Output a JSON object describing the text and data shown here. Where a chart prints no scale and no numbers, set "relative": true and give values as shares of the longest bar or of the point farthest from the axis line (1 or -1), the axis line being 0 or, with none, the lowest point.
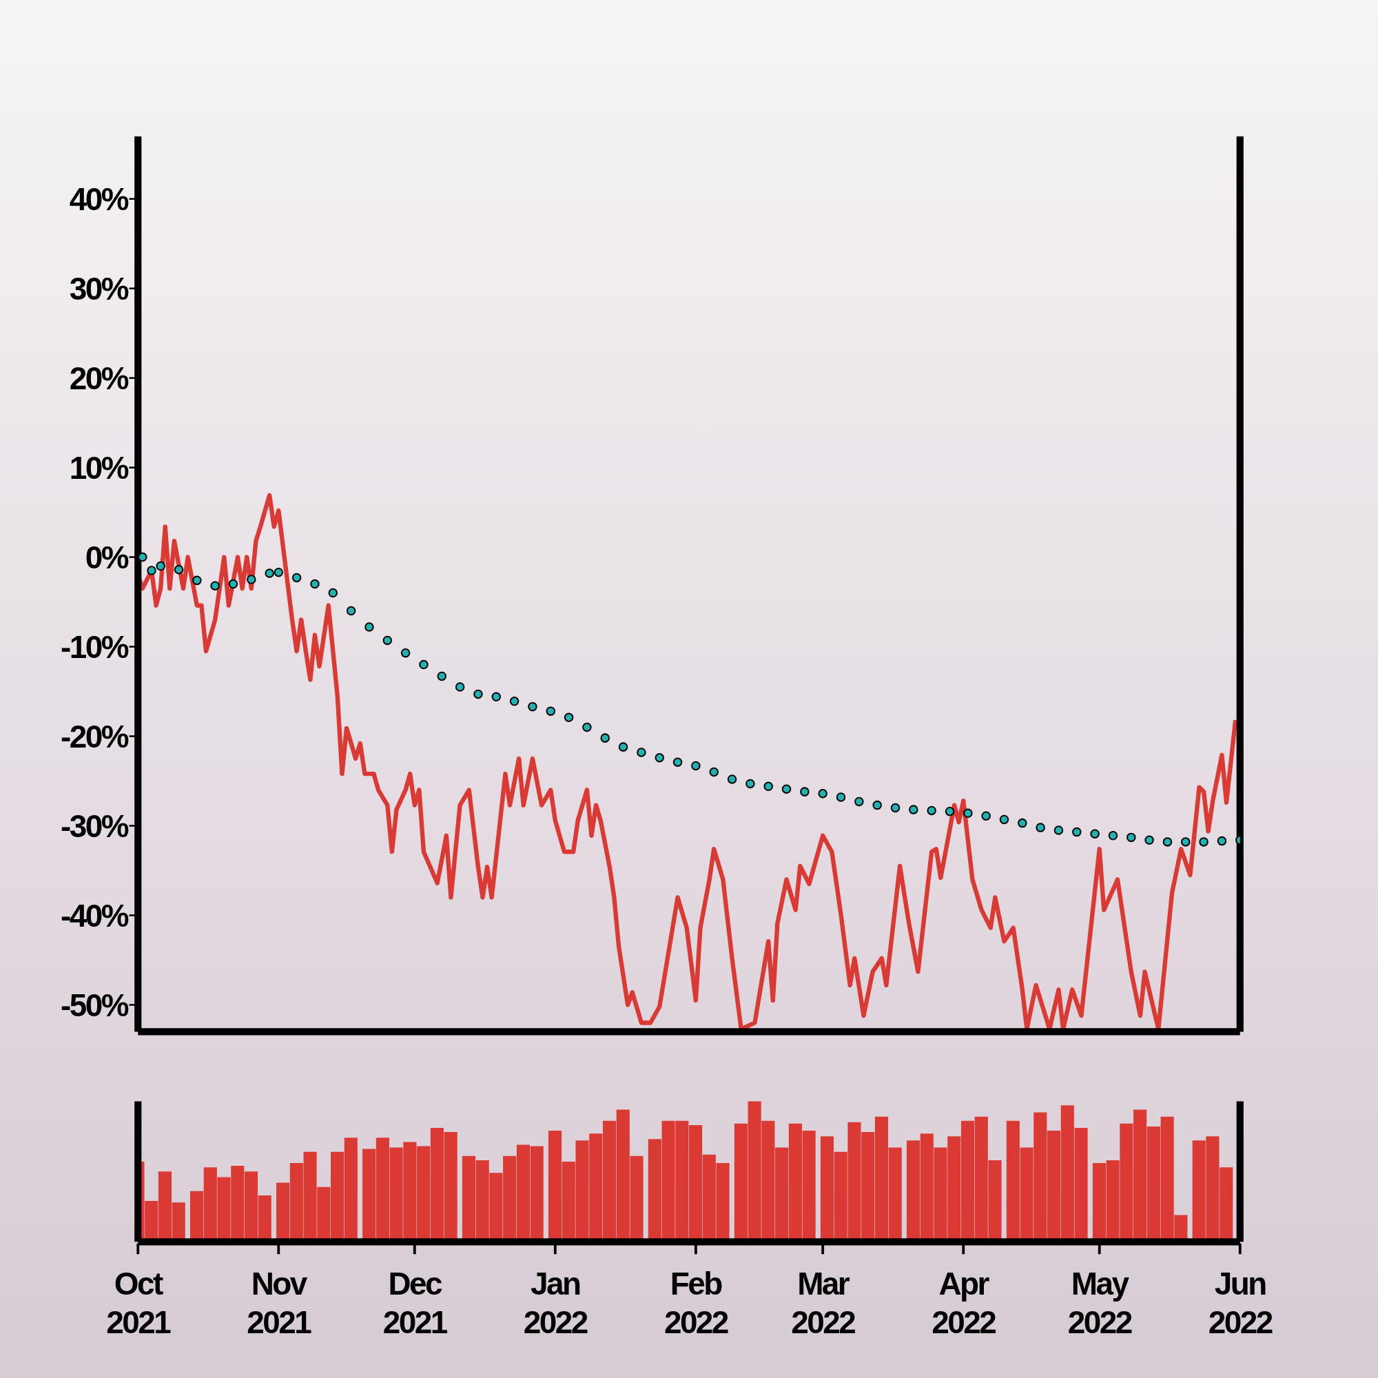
{
  "chart_data": [
    {
      "type": "line",
      "xlim": [
        "2021-10-01",
        "2022-06-01"
      ],
      "ylim": [
        -53,
        47
      ],
      "yticks": [
        {
          "value": -50,
          "label": "-50%"
        },
        {
          "value": -40,
          "label": "-40%"
        },
        {
          "value": -30,
          "label": "-30%"
        },
        {
          "value": -20,
          "label": "-20%"
        },
        {
          "value": -10,
          "label": "-10%"
        },
        {
          "value": 0,
          "label": "0%"
        },
        {
          "value": 10,
          "label": "10%"
        },
        {
          "value": 20,
          "label": "20%"
        },
        {
          "value": 30,
          "label": "30%"
        },
        {
          "value": 40,
          "label": "40%"
        }
      ],
      "tick_labels": "y",
      "series": [
        {
          "color": "#db3a34",
          "line_style": "solid",
          "x": [
            "2021-10-01",
            "2021-10-02",
            "2021-10-04",
            "2021-10-05",
            "2021-10-06",
            "2021-10-07",
            "2021-10-08",
            "2021-10-09",
            "2021-10-11",
            "2021-10-12",
            "2021-10-14",
            "2021-10-15",
            "2021-10-16",
            "2021-10-18",
            "2021-10-20",
            "2021-10-21",
            "2021-10-23",
            "2021-10-24",
            "2021-10-25",
            "2021-10-26",
            "2021-10-27",
            "2021-10-28",
            "2021-10-30",
            "2021-10-31",
            "2021-11-01",
            "2021-11-04",
            "2021-11-05",
            "2021-11-06",
            "2021-11-07",
            "2021-11-08",
            "2021-11-09",
            "2021-11-10",
            "2021-11-12",
            "2021-11-14",
            "2021-11-15",
            "2021-11-16",
            "2021-11-18",
            "2021-11-19",
            "2021-11-20",
            "2021-11-22",
            "2021-11-23",
            "2021-11-25",
            "2021-11-26",
            "2021-11-27",
            "2021-11-29",
            "2021-11-30",
            "2021-12-01",
            "2021-12-02",
            "2021-12-03",
            "2021-12-06",
            "2021-12-08",
            "2021-12-09",
            "2021-12-11",
            "2021-12-13",
            "2021-12-15",
            "2021-12-16",
            "2021-12-17",
            "2021-12-18",
            "2021-12-21",
            "2021-12-22",
            "2021-12-24",
            "2021-12-25",
            "2021-12-27",
            "2021-12-29",
            "2021-12-31",
            "2022-01-01",
            "2022-01-03",
            "2022-01-05",
            "2022-01-06",
            "2022-01-08",
            "2022-01-09",
            "2022-01-10",
            "2022-01-11",
            "2022-01-13",
            "2022-01-14",
            "2022-01-15",
            "2022-01-17",
            "2022-01-18",
            "2022-01-20",
            "2022-01-22",
            "2022-01-24",
            "2022-01-28",
            "2022-01-30",
            "2022-02-01",
            "2022-02-02",
            "2022-02-04",
            "2022-02-05",
            "2022-02-07",
            "2022-02-09",
            "2022-02-11",
            "2022-02-14",
            "2022-02-17",
            "2022-02-18",
            "2022-02-19",
            "2022-02-21",
            "2022-02-23",
            "2022-02-24",
            "2022-02-26",
            "2022-03-01",
            "2022-03-03",
            "2022-03-05",
            "2022-03-07",
            "2022-03-08",
            "2022-03-10",
            "2022-03-12",
            "2022-03-14",
            "2022-03-15",
            "2022-03-18",
            "2022-03-20",
            "2022-03-22",
            "2022-03-25",
            "2022-03-26",
            "2022-03-27",
            "2022-03-30",
            "2022-03-31",
            "2022-04-01",
            "2022-04-03",
            "2022-04-05",
            "2022-04-07",
            "2022-04-08",
            "2022-04-10",
            "2022-04-12",
            "2022-04-14",
            "2022-04-15",
            "2022-04-17",
            "2022-04-20",
            "2022-04-22",
            "2022-04-23",
            "2022-04-25",
            "2022-04-27",
            "2022-05-01",
            "2022-05-02",
            "2022-05-05",
            "2022-05-08",
            "2022-05-10",
            "2022-05-11",
            "2022-05-14",
            "2022-05-17",
            "2022-05-19",
            "2022-05-21",
            "2022-05-23",
            "2022-05-24",
            "2022-05-25",
            "2022-05-26",
            "2022-05-28",
            "2022-05-29",
            "2022-05-31"
          ],
          "values": [
            -2,
            -3.5,
            -1.5,
            -5.4,
            -3.5,
            3.4,
            -3.5,
            1.8,
            -3.5,
            0,
            -5.4,
            -5.4,
            -10.5,
            -7,
            0,
            -5.4,
            0,
            -3.5,
            0,
            -3.5,
            1.8,
            3.4,
            6.9,
            3.4,
            5.2,
            -7,
            -10.5,
            -7,
            -10.5,
            -13.7,
            -8.7,
            -12.2,
            -5.4,
            -15.6,
            -24.2,
            -19.1,
            -22.5,
            -20.8,
            -24.2,
            -24.2,
            -26,
            -27.7,
            -32.9,
            -28.2,
            -26,
            -24.2,
            -27.7,
            -26,
            -32.9,
            -36.4,
            -31.1,
            -38,
            -27.7,
            -26,
            -34.6,
            -38,
            -34.6,
            -38,
            -24.2,
            -27.7,
            -22.5,
            -27.7,
            -22.5,
            -27.7,
            -26,
            -29.4,
            -32.9,
            -32.9,
            -29.4,
            -26,
            -31.1,
            -27.7,
            -29.4,
            -34.6,
            -38,
            -43.4,
            -50,
            -48.6,
            -52,
            -52,
            -50.2,
            -38,
            -41.4,
            -49.5,
            -41.4,
            -36,
            -32.6,
            -36,
            -44.8,
            -52.7,
            -52,
            -42.9,
            -49.5,
            -40.9,
            -36,
            -39.4,
            -34.5,
            -36.5,
            -31.1,
            -32.9,
            -39.9,
            -47.8,
            -44.8,
            -51.2,
            -46.3,
            -44.8,
            -47.8,
            -34.5,
            -40.9,
            -46.3,
            -32.9,
            -32.6,
            -35.8,
            -27.7,
            -29.6,
            -27.2,
            -36,
            -39.4,
            -41.4,
            -38,
            -42.9,
            -41.4,
            -48.3,
            -52.7,
            -47.8,
            -52.7,
            -48.3,
            -52.7,
            -48.3,
            -51.2,
            -32.6,
            -39.4,
            -36,
            -46.3,
            -51.2,
            -46.3,
            -52.7,
            -37.5,
            -32.6,
            -35.5,
            -25.7,
            -26.2,
            -30.6,
            -27.2,
            -22.1,
            -27.4,
            -18.2
          ]
        },
        {
          "type": "scatter",
          "color": "#1fb3b3",
          "marker": "circle",
          "x": [
            "2021-10-02",
            "2021-10-04",
            "2021-10-06",
            "2021-10-10",
            "2021-10-14",
            "2021-10-18",
            "2021-10-22",
            "2021-10-26",
            "2021-10-30",
            "2021-11-01",
            "2021-11-05",
            "2021-11-09",
            "2021-11-13",
            "2021-11-17",
            "2021-11-21",
            "2021-11-25",
            "2021-11-29",
            "2021-12-03",
            "2021-12-07",
            "2021-12-11",
            "2021-12-15",
            "2021-12-19",
            "2021-12-23",
            "2021-12-27",
            "2021-12-31",
            "2022-01-04",
            "2022-01-08",
            "2022-01-12",
            "2022-01-16",
            "2022-01-20",
            "2022-01-24",
            "2022-01-28",
            "2022-02-01",
            "2022-02-05",
            "2022-02-09",
            "2022-02-13",
            "2022-02-17",
            "2022-02-21",
            "2022-02-25",
            "2022-03-01",
            "2022-03-05",
            "2022-03-09",
            "2022-03-13",
            "2022-03-17",
            "2022-03-21",
            "2022-03-25",
            "2022-03-29",
            "2022-04-02",
            "2022-04-06",
            "2022-04-10",
            "2022-04-14",
            "2022-04-18",
            "2022-04-22",
            "2022-04-26",
            "2022-04-30",
            "2022-05-04",
            "2022-05-08",
            "2022-05-12",
            "2022-05-16",
            "2022-05-20",
            "2022-05-24",
            "2022-05-28",
            "2022-06-01"
          ],
          "values": [
            0,
            -1.5,
            -1,
            -1.4,
            -2.6,
            -3.2,
            -3,
            -2.5,
            -1.8,
            -1.7,
            -2.3,
            -3,
            -4,
            -6,
            -7.8,
            -9.3,
            -10.7,
            -12,
            -13.3,
            -14.5,
            -15.3,
            -15.6,
            -16.1,
            -16.7,
            -17.2,
            -17.9,
            -19,
            -20.2,
            -21.2,
            -21.8,
            -22.4,
            -22.9,
            -23.3,
            -24,
            -24.8,
            -25.3,
            -25.6,
            -25.9,
            -26.2,
            -26.4,
            -26.8,
            -27.3,
            -27.7,
            -28,
            -28.2,
            -28.3,
            -28.4,
            -28.6,
            -28.9,
            -29.3,
            -29.7,
            -30.2,
            -30.5,
            -30.7,
            -30.9,
            -31.1,
            -31.3,
            -31.6,
            -31.8,
            -31.8,
            -31.8,
            -31.7,
            -31.6
          ]
        }
      ]
    },
    {
      "type": "bar",
      "relative": true,
      "color": "#db3a34",
      "xlim": [
        "2021-10-01",
        "2022-06-01"
      ],
      "xticks": [
        {
          "value": "2021-10-01",
          "label": "Oct 2021"
        },
        {
          "value": "2021-11-01",
          "label": "Nov 2021"
        },
        {
          "value": "2021-12-01",
          "label": "Dec 2021"
        },
        {
          "value": "2022-01-01",
          "label": "Jan 2022"
        },
        {
          "value": "2022-02-01",
          "label": "Feb 2022"
        },
        {
          "value": "2022-03-01",
          "label": "Mar 2022"
        },
        {
          "value": "2022-04-01",
          "label": "Apr 2022"
        },
        {
          "value": "2022-05-01",
          "label": "May 2022"
        },
        {
          "value": "2022-06-01",
          "label": "Jun 2022"
        }
      ],
      "tick_labels": "x",
      "x": [
        "2021-10-01",
        "2021-10-04",
        "2021-10-07",
        "2021-10-10",
        "2021-10-14",
        "2021-10-17",
        "2021-10-20",
        "2021-10-23",
        "2021-10-26",
        "2021-10-29",
        "2021-11-02",
        "2021-11-05",
        "2021-11-08",
        "2021-11-11",
        "2021-11-14",
        "2021-11-17",
        "2021-11-21",
        "2021-11-24",
        "2021-11-27",
        "2021-11-30",
        "2021-12-03",
        "2021-12-06",
        "2021-12-09",
        "2021-12-13",
        "2021-12-16",
        "2021-12-19",
        "2021-12-22",
        "2021-12-25",
        "2021-12-28",
        "2022-01-01",
        "2022-01-04",
        "2022-01-07",
        "2022-01-10",
        "2022-01-13",
        "2022-01-16",
        "2022-01-19",
        "2022-01-23",
        "2022-01-26",
        "2022-01-29",
        "2022-02-01",
        "2022-02-04",
        "2022-02-07",
        "2022-02-11",
        "2022-02-14",
        "2022-02-17",
        "2022-02-20",
        "2022-02-23",
        "2022-02-26",
        "2022-03-02",
        "2022-03-05",
        "2022-03-08",
        "2022-03-11",
        "2022-03-14",
        "2022-03-17",
        "2022-03-21",
        "2022-03-24",
        "2022-03-27",
        "2022-03-30",
        "2022-04-02",
        "2022-04-05",
        "2022-04-08",
        "2022-04-12",
        "2022-04-15",
        "2022-04-18",
        "2022-04-21",
        "2022-04-24",
        "2022-04-27",
        "2022-05-01",
        "2022-05-04",
        "2022-05-07",
        "2022-05-10",
        "2022-05-13",
        "2022-05-16",
        "2022-05-19",
        "2022-05-23",
        "2022-05-26",
        "2022-05-29"
      ],
      "values": [
        0.57,
        0.29,
        0.5,
        0.28,
        0.36,
        0.53,
        0.46,
        0.54,
        0.5,
        0.33,
        0.42,
        0.56,
        0.64,
        0.39,
        0.64,
        0.74,
        0.66,
        0.74,
        0.67,
        0.71,
        0.68,
        0.81,
        0.78,
        0.61,
        0.58,
        0.49,
        0.61,
        0.69,
        0.68,
        0.79,
        0.57,
        0.72,
        0.77,
        0.86,
        0.94,
        0.61,
        0.73,
        0.86,
        0.86,
        0.83,
        0.62,
        0.56,
        0.84,
        1,
        0.86,
        0.67,
        0.84,
        0.79,
        0.75,
        0.64,
        0.85,
        0.78,
        0.89,
        0.67,
        0.72,
        0.77,
        0.67,
        0.75,
        0.86,
        0.89,
        0.58,
        0.86,
        0.67,
        0.92,
        0.79,
        0.97,
        0.81,
        0.56,
        0.58,
        0.84,
        0.94,
        0.82,
        0.89,
        0.19,
        0.72,
        0.75,
        0.53
      ]
    }
  ]
}
